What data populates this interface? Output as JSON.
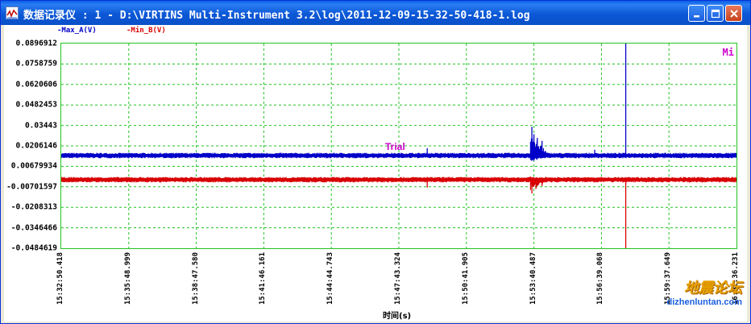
{
  "window": {
    "title": "数据记录仪 : 1 - D:\\VIRTINS Multi-Instrument 3.2\\log\\2011-12-09-15-32-50-418-1.log",
    "buttons": [
      "minimize-icon",
      "maximize-icon",
      "close-icon"
    ]
  },
  "legend": {
    "series_a": "-Max_A(V)",
    "series_b": "-Min_B(V)"
  },
  "plot_marker": "Mi",
  "annotation": "Trial",
  "watermark": {
    "logo_text": "地震论坛",
    "url": "dizhenluntan.com"
  },
  "colors": {
    "series_a": "#0000c8",
    "series_b": "#d80000",
    "grid": "#22c322",
    "marker": "#cc00cc",
    "watermark": "#e8a000"
  },
  "chart_data": {
    "type": "line",
    "title": "",
    "xlabel": "时间(s)",
    "ylabel": "",
    "yticks": [
      "0.0896912",
      "0.0758759",
      "0.0620606",
      "0.0482453",
      "0.03443",
      "0.0206146",
      "0.00679934",
      "-0.00701597",
      "-0.0208313",
      "-0.0346466",
      "-0.0484619"
    ],
    "ylim": [
      -0.0484619,
      0.0896912
    ],
    "xticks": [
      "15:32:50.418",
      "15:35:48.999",
      "15:38:47.580",
      "15:41:46.161",
      "15:44:44.743",
      "15:47:43.324",
      "15:50:41.905",
      "15:53:40.487",
      "15:56:39.068",
      "15:59:37.649",
      "16:02:36.231"
    ],
    "grid": true,
    "series": [
      {
        "name": "Max_A(V)",
        "baseline": 0.0141,
        "events": [
          {
            "x_frac": 0.542,
            "peak": 0.019
          },
          {
            "x_frac": 0.697,
            "peak": 0.0335
          },
          {
            "x_frac": 0.7,
            "peak": 0.0285
          },
          {
            "x_frac": 0.705,
            "peak": 0.026
          },
          {
            "x_frac": 0.712,
            "peak": 0.024
          },
          {
            "x_frac": 0.79,
            "peak": 0.018
          },
          {
            "x_frac": 0.836,
            "peak": 0.0896912
          }
        ]
      },
      {
        "name": "Min_B(V)",
        "baseline": -0.0022,
        "events": [
          {
            "x_frac": 0.542,
            "peak": -0.0075
          },
          {
            "x_frac": 0.697,
            "peak": -0.0115
          },
          {
            "x_frac": 0.703,
            "peak": -0.0085
          },
          {
            "x_frac": 0.712,
            "peak": -0.0065
          },
          {
            "x_frac": 0.836,
            "peak": -0.0484619
          }
        ]
      }
    ]
  }
}
